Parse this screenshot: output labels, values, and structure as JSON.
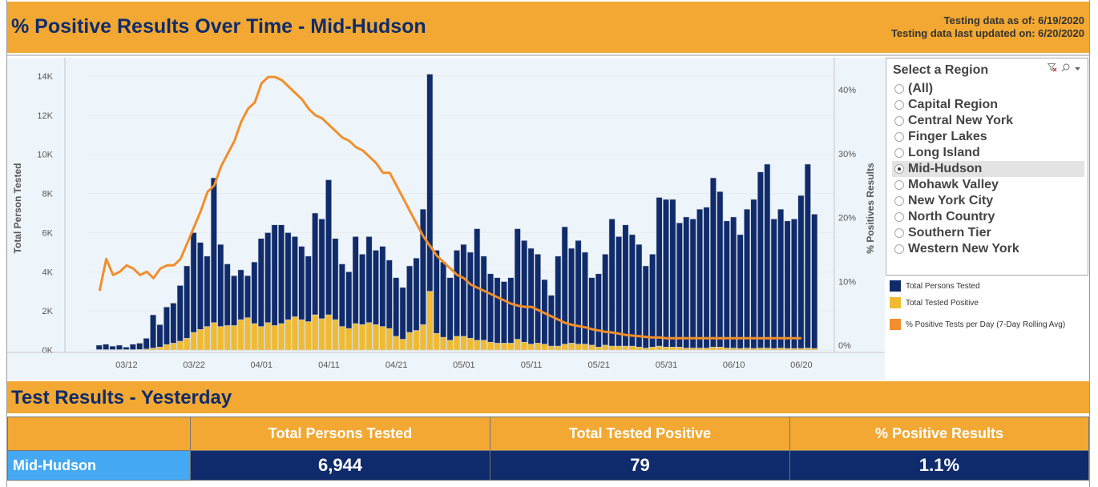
{
  "header": {
    "title": "% Positive Results Over Time - Mid-Hudson",
    "as_of": "Testing data as of: 6/19/2020",
    "last_updated": "Testing data last updated on: 6/20/2020"
  },
  "filter": {
    "title": "Select a Region",
    "icons": [
      "clear-filter-icon",
      "search-icon",
      "dropdown-arrow-icon"
    ],
    "options": [
      "(All)",
      "Capital Region",
      "Central New York",
      "Finger Lakes",
      "Long Island",
      "Mid-Hudson",
      "Mohawk Valley",
      "New York City",
      "North Country",
      "Southern Tier",
      "Western New York"
    ],
    "selected": "Mid-Hudson"
  },
  "legend": [
    {
      "label": "Total Persons Tested",
      "color": "#0f2b6b"
    },
    {
      "label": "Total Tested Positive",
      "color": "#f0bb30"
    },
    {
      "label": "% Positive Tests per Day (7-Day Rolling Avg)",
      "color": "#f28e2b"
    }
  ],
  "colors": {
    "banner": "#f2a832",
    "title_text": "#0f2b6b",
    "tested_bar": "#0f2b6b",
    "positive_bar": "#f0bb30",
    "line": "#f28e2b",
    "region_cell": "#44a8f2",
    "chart_bg": "#eef5fa"
  },
  "chart_data": {
    "type": "bar",
    "title": "% Positive Results Over Time - Mid-Hudson",
    "ylabel": "Total Person Tested",
    "y2label": "% Positives Results",
    "ylim": [
      0,
      14000
    ],
    "y2lim": [
      0,
      43
    ],
    "yticks": [
      "0K",
      "2K",
      "4K",
      "6K",
      "8K",
      "10K",
      "12K",
      "14K"
    ],
    "yticks_values": [
      0,
      2000,
      4000,
      6000,
      8000,
      10000,
      12000,
      14000
    ],
    "y2ticks": [
      "0%",
      "10%",
      "20%",
      "30%",
      "40%"
    ],
    "y2ticks_values": [
      0,
      10,
      20,
      30,
      40
    ],
    "xticks": [
      "03/12",
      "03/22",
      "04/01",
      "04/11",
      "04/21",
      "05/01",
      "05/11",
      "05/21",
      "05/31",
      "06/10",
      "06/20"
    ],
    "xticks_day_index": [
      4,
      14,
      24,
      34,
      44,
      54,
      64,
      74,
      84,
      94,
      104
    ],
    "grid": true,
    "legend_position": "right",
    "start_date": "03/08",
    "series": [
      {
        "name": "Total Persons Tested",
        "type": "bar",
        "values": [
          250,
          300,
          200,
          250,
          150,
          300,
          350,
          600,
          1800,
          1300,
          2200,
          2400,
          3300,
          4300,
          6000,
          5500,
          4800,
          8800,
          5400,
          4400,
          3800,
          4100,
          3800,
          4500,
          5700,
          6000,
          6400,
          6400,
          6000,
          5800,
          5300,
          4800,
          7000,
          6700,
          8700,
          5700,
          4400,
          4000,
          5800,
          4900,
          5800,
          5100,
          5300,
          4600,
          3700,
          3200,
          4300,
          4700,
          7200,
          14100,
          5100,
          4500,
          3700,
          5100,
          5400,
          5000,
          6200,
          4800,
          3900,
          3700,
          3500,
          3700,
          6200,
          5600,
          5200,
          4900,
          3600,
          2800,
          4800,
          6300,
          5200,
          5600,
          5000,
          3700,
          3900,
          4900,
          6700,
          5800,
          6400,
          5900,
          5400,
          4300,
          4900,
          7800,
          7700,
          7700,
          6500,
          6800,
          6700,
          7200,
          7300,
          8800,
          8100,
          6600,
          6800,
          5900,
          7200,
          7700,
          9100,
          9500,
          6700,
          7200,
          6600,
          6700,
          7900,
          9500,
          6944
        ],
        "note": "approximate; read from chart"
      },
      {
        "name": "Total Tested Positive",
        "type": "bar",
        "values": [
          20,
          20,
          20,
          20,
          20,
          20,
          30,
          50,
          100,
          150,
          280,
          350,
          450,
          600,
          900,
          1050,
          1200,
          1400,
          1200,
          1250,
          1250,
          1550,
          1650,
          1350,
          1200,
          1400,
          1250,
          1350,
          1550,
          1700,
          1550,
          1450,
          1800,
          1600,
          1800,
          1550,
          1200,
          1100,
          1350,
          1300,
          1400,
          1300,
          1200,
          1100,
          700,
          550,
          900,
          1000,
          1300,
          3000,
          850,
          650,
          500,
          700,
          700,
          600,
          500,
          500,
          400,
          350,
          350,
          350,
          550,
          400,
          300,
          350,
          300,
          200,
          200,
          300,
          350,
          300,
          300,
          250,
          150,
          250,
          200,
          200,
          200,
          200,
          150,
          100,
          150,
          200,
          150,
          150,
          150,
          100,
          100,
          100,
          100,
          150,
          150,
          100,
          100,
          80,
          100,
          80,
          100,
          100,
          80,
          100,
          80,
          80,
          80,
          100,
          79
        ]
      },
      {
        "name": "% Positive Tests per Day (7-Day Rolling Avg)",
        "type": "line",
        "values": [
          8.5,
          13.5,
          11,
          11.5,
          12.5,
          12,
          11,
          11.5,
          10.5,
          12,
          12.5,
          12.5,
          13.5,
          16,
          18.5,
          21,
          24,
          25,
          28,
          30,
          32,
          35,
          37,
          38,
          41,
          42,
          42,
          41.5,
          40.5,
          39.5,
          38.5,
          37,
          36,
          35.5,
          34.5,
          33.5,
          32.5,
          32,
          31,
          30.5,
          29.5,
          28.5,
          27,
          27,
          25,
          23,
          21,
          19,
          17,
          15.5,
          14,
          13,
          12,
          11,
          10.5,
          9.5,
          9,
          8.5,
          8,
          7.5,
          7,
          6.5,
          6.2,
          6,
          6,
          5.5,
          5,
          4.5,
          4,
          3.5,
          3.2,
          3,
          2.8,
          2.5,
          2.3,
          2.1,
          2,
          1.8,
          1.6,
          1.5,
          1.4,
          1.3,
          1.2,
          1.2,
          1.1,
          1.1,
          1.1,
          1.1,
          1.1,
          1.1,
          1.1,
          1.1,
          1.1,
          1.1,
          1.1,
          1.1,
          1.1,
          1.1,
          1.1,
          1.1,
          1.1,
          1.1,
          1.1,
          1.1,
          1.1
        ]
      }
    ]
  },
  "results": {
    "title": "Test Results - Yesterday",
    "columns": [
      "",
      "Total Persons Tested",
      "Total Tested Positive",
      "% Positive Results"
    ],
    "row": {
      "region": "Mid-Hudson",
      "tested": "6,944",
      "positive": "79",
      "pct_positive": "1.1%"
    }
  }
}
